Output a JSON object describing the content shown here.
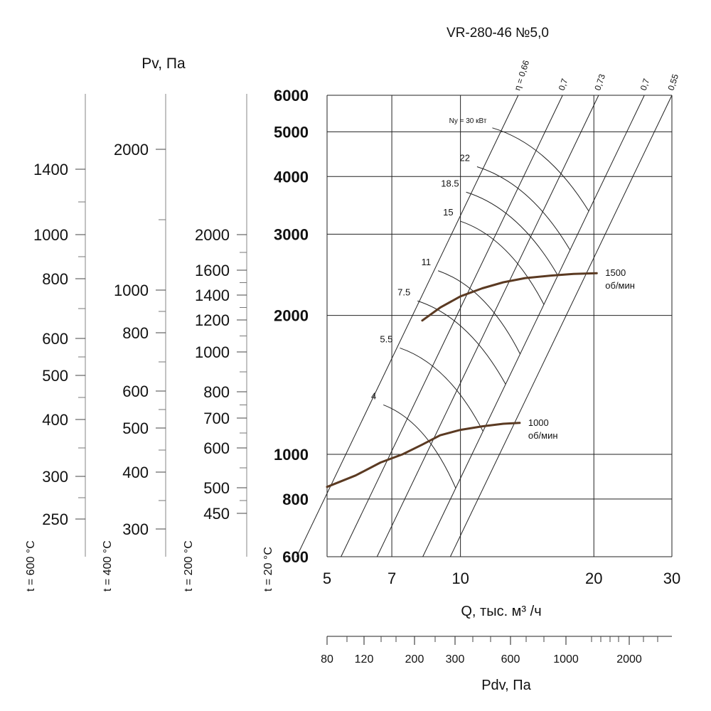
{
  "chart_data": {
    "type": "line",
    "title": "VR-280-46 №5,0",
    "xlabel": "Q, тыс. м³ /ч",
    "ylabel": "Pv, Па",
    "xscale": "log",
    "yscale": "log",
    "xlim": [
      5,
      30
    ],
    "ylim": [
      600,
      6000
    ],
    "x_ticks": [
      "5",
      "7",
      "10",
      "20",
      "30"
    ],
    "y_ticks": [
      "600",
      "800",
      "1000",
      "2000",
      "3000",
      "4000",
      "5000",
      "6000"
    ],
    "grid": true,
    "efficiency_lines": {
      "labels": [
        "η = 0,66",
        "0,7",
        "0,73",
        "0,7",
        "0,55"
      ],
      "q_at_6000": [
        13.5,
        17.0,
        20.5,
        26.0,
        30.0
      ]
    },
    "power_lines": {
      "first_label": "Nу = 30 кВт",
      "labels": [
        "22",
        "18.5",
        "15",
        "11",
        "7.5",
        "5.5",
        "4"
      ],
      "start_points": [
        {
          "q": 11.8,
          "p": 5100
        },
        {
          "q": 10.9,
          "p": 4200
        },
        {
          "q": 10.3,
          "p": 3700
        },
        {
          "q": 10.0,
          "p": 3200
        },
        {
          "q": 8.9,
          "p": 2500
        },
        {
          "q": 8.0,
          "p": 2150
        },
        {
          "q": 7.3,
          "p": 1700
        },
        {
          "q": 6.7,
          "p": 1280
        }
      ]
    },
    "series": [
      {
        "name": "1500 об/мин",
        "label_lines": [
          "1500",
          "об/мин"
        ],
        "x": [
          8.2,
          9.0,
          10.0,
          11.2,
          12.5,
          14.0,
          16.0,
          18.0,
          20.3
        ],
        "y": [
          1950,
          2080,
          2200,
          2290,
          2360,
          2410,
          2440,
          2460,
          2470
        ]
      },
      {
        "name": "1000 об/мин",
        "label_lines": [
          "1000",
          "об/мин"
        ],
        "x": [
          5.0,
          5.8,
          6.6,
          7.4,
          8.2,
          9.0,
          10.0,
          11.2,
          12.5,
          13.6
        ],
        "y": [
          850,
          900,
          960,
          1000,
          1050,
          1100,
          1130,
          1150,
          1165,
          1170
        ]
      }
    ],
    "temperature_scales": [
      {
        "label": "t = 600 °C",
        "ticks": [
          "1400",
          "1000",
          "800",
          "600",
          "500",
          "400",
          "300",
          "250"
        ]
      },
      {
        "label": "t = 400 °C",
        "ticks": [
          "2000",
          "1000",
          "800",
          "600",
          "500",
          "400",
          "300"
        ]
      },
      {
        "label": "t = 200 °C",
        "ticks": [
          "2000",
          "1600",
          "1400",
          "1200",
          "1000",
          "800",
          "700",
          "600",
          "500",
          "450"
        ]
      },
      {
        "label": "t = 20 °C",
        "ticks": []
      }
    ],
    "dynamic_pressure_scale": {
      "label": "Pdv, Па",
      "ticks": [
        "80",
        "120",
        "200",
        "300",
        "600",
        "1000",
        "2000"
      ]
    }
  }
}
